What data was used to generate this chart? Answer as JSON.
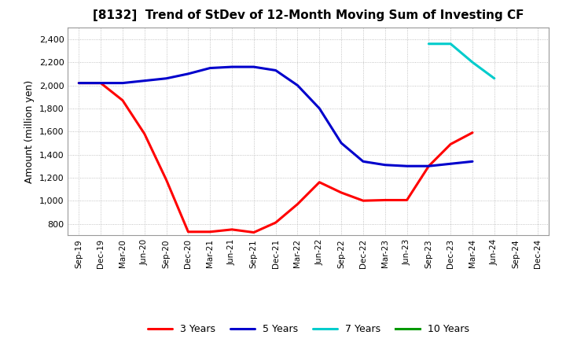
{
  "title": "[8132]  Trend of StDev of 12-Month Moving Sum of Investing CF",
  "ylabel": "Amount (million yen)",
  "background_color": "#ffffff",
  "grid_color": "#aaaaaa",
  "ylim": [
    700,
    2500
  ],
  "yticks": [
    800,
    1000,
    1200,
    1400,
    1600,
    1800,
    2000,
    2200,
    2400
  ],
  "x_labels": [
    "Sep-19",
    "Dec-19",
    "Mar-20",
    "Jun-20",
    "Sep-20",
    "Dec-20",
    "Mar-21",
    "Jun-21",
    "Sep-21",
    "Dec-21",
    "Mar-22",
    "Jun-22",
    "Sep-22",
    "Dec-22",
    "Mar-23",
    "Jun-23",
    "Sep-23",
    "Dec-23",
    "Mar-24",
    "Jun-24",
    "Sep-24",
    "Dec-24"
  ],
  "series": {
    "3 Years": {
      "color": "#ff0000",
      "linewidth": 2.2,
      "data_x": [
        0,
        1,
        2,
        3,
        4,
        5,
        6,
        7,
        8,
        9,
        10,
        11,
        12,
        13,
        14,
        15,
        16,
        17,
        18
      ],
      "data_y": [
        2020,
        2020,
        1870,
        1580,
        1180,
        730,
        730,
        750,
        725,
        810,
        970,
        1160,
        1070,
        1000,
        1005,
        1005,
        1300,
        1490,
        1590
      ]
    },
    "5 Years": {
      "color": "#0000cc",
      "linewidth": 2.2,
      "data_x": [
        0,
        1,
        2,
        3,
        4,
        5,
        6,
        7,
        8,
        9,
        10,
        11,
        12,
        13,
        14,
        15,
        16,
        17,
        18
      ],
      "data_y": [
        2020,
        2020,
        2020,
        2040,
        2060,
        2100,
        2150,
        2160,
        2160,
        2130,
        2000,
        1800,
        1500,
        1340,
        1310,
        1300,
        1300,
        1320,
        1340
      ]
    },
    "7 Years": {
      "color": "#00cccc",
      "linewidth": 2.2,
      "data_x": [
        16,
        17,
        18,
        19
      ],
      "data_y": [
        2360,
        2360,
        2200,
        2060
      ]
    },
    "10 Years": {
      "color": "#009900",
      "linewidth": 2.2,
      "data_x": [],
      "data_y": []
    }
  },
  "legend_order": [
    "3 Years",
    "5 Years",
    "7 Years",
    "10 Years"
  ]
}
